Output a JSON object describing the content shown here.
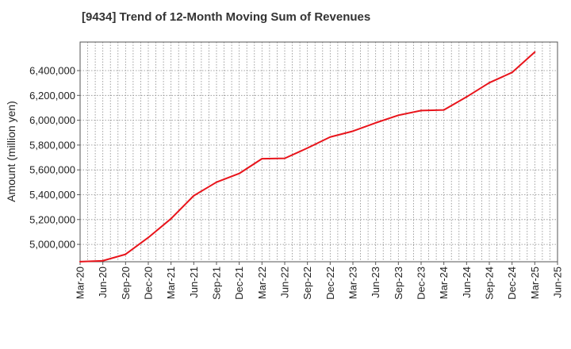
{
  "title": "[9434]  Trend of 12-Month Moving Sum of Revenues",
  "chart_data": {
    "type": "line",
    "title": "[9434]  Trend of 12-Month Moving Sum of Revenues",
    "xlabel": "",
    "ylabel": "Amount (million yen)",
    "x_ticks": [
      "Mar-20",
      "Jun-20",
      "Sep-20",
      "Dec-20",
      "Mar-21",
      "Jun-21",
      "Sep-21",
      "Dec-21",
      "Mar-22",
      "Jun-22",
      "Sep-22",
      "Dec-22",
      "Mar-23",
      "Jun-23",
      "Sep-23",
      "Dec-23",
      "Mar-24",
      "Jun-24",
      "Sep-24",
      "Dec-24",
      "Mar-25",
      "Jun-25"
    ],
    "y_ticks": [
      5000000,
      5200000,
      5400000,
      5600000,
      5800000,
      6000000,
      6200000,
      6400000
    ],
    "y_tick_labels": [
      "5,000,000",
      "5,200,000",
      "5,400,000",
      "5,600,000",
      "5,800,000",
      "6,000,000",
      "6,200,000",
      "6,400,000"
    ],
    "ylim": [
      4860000,
      6630000
    ],
    "grid": true,
    "series": [
      {
        "color": "#e8141b",
        "x": [
          "Mar-20",
          "Jun-20",
          "Sep-20",
          "Dec-20",
          "Mar-21",
          "Jun-21",
          "Sep-21",
          "Dec-21",
          "Mar-22",
          "Jun-22",
          "Sep-22",
          "Dec-22",
          "Mar-23",
          "Jun-23",
          "Sep-23",
          "Dec-23",
          "Mar-24",
          "Jun-24",
          "Sep-24",
          "Dec-24",
          "Mar-25"
        ],
        "values": [
          4861000,
          4868000,
          4920000,
          5055000,
          5207000,
          5392000,
          5501000,
          5571000,
          5690000,
          5693000,
          5776000,
          5865000,
          5912000,
          5979000,
          6040000,
          6078000,
          6083000,
          6188000,
          6302000,
          6385000,
          6549000
        ]
      }
    ]
  }
}
